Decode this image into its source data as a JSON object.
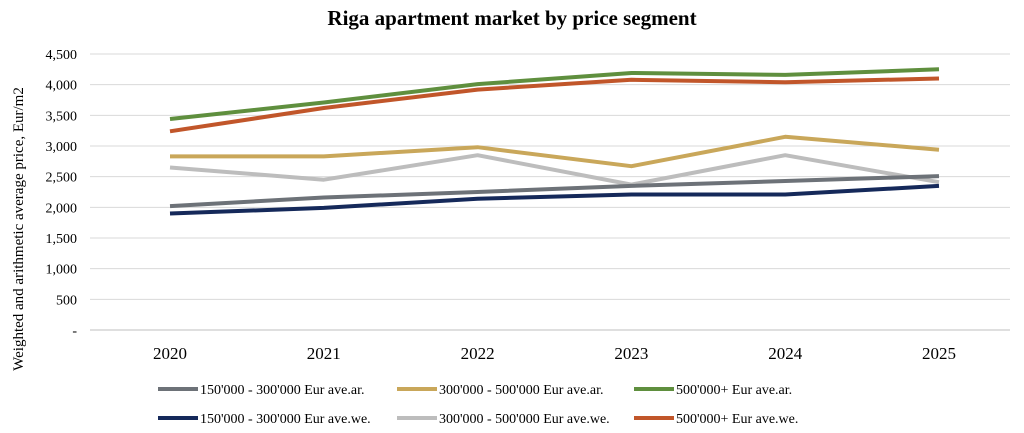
{
  "chart_data": {
    "type": "line",
    "title": "Riga apartment market by price segment",
    "xlabel": "",
    "ylabel": "Weighted and arithmetic average price, Eur/m2",
    "categories": [
      "2020",
      "2021",
      "2022",
      "2023",
      "2024",
      "2025"
    ],
    "ylim": [
      0,
      4500
    ],
    "ytick_labels": [
      "-",
      "500",
      "1,000",
      "1,500",
      "2,000",
      "2,500",
      "3,000",
      "3,500",
      "4,000",
      "4,500"
    ],
    "ytick_values": [
      0,
      500,
      1000,
      1500,
      2000,
      2500,
      3000,
      3500,
      4000,
      4500
    ],
    "grid": true,
    "legend_position": "bottom",
    "series": [
      {
        "name": "150'000 - 300'000 Eur ave.ar.",
        "color": "#6d7278",
        "values": [
          2020,
          2160,
          2250,
          2350,
          2430,
          2510
        ]
      },
      {
        "name": "300'000 - 500'000 Eur ave.ar.",
        "color": "#c9a75a",
        "values": [
          2830,
          2830,
          2980,
          2670,
          3150,
          2940
        ]
      },
      {
        "name": "500'000+ Eur ave.ar.",
        "color": "#5f8f3e",
        "values": [
          3440,
          3710,
          4010,
          4190,
          4160,
          4250
        ]
      },
      {
        "name": "150'000 - 300'000 Eur ave.we.",
        "color": "#15295a",
        "values": [
          1900,
          1990,
          2140,
          2210,
          2210,
          2350
        ]
      },
      {
        "name": "300'000 - 500'000 Eur ave.we.",
        "color": "#bdbdbd",
        "values": [
          2650,
          2450,
          2850,
          2370,
          2850,
          2410
        ]
      },
      {
        "name": "500'000+ Eur ave.we.",
        "color": "#c1562a",
        "values": [
          3240,
          3620,
          3920,
          4080,
          4040,
          4100
        ]
      }
    ]
  }
}
